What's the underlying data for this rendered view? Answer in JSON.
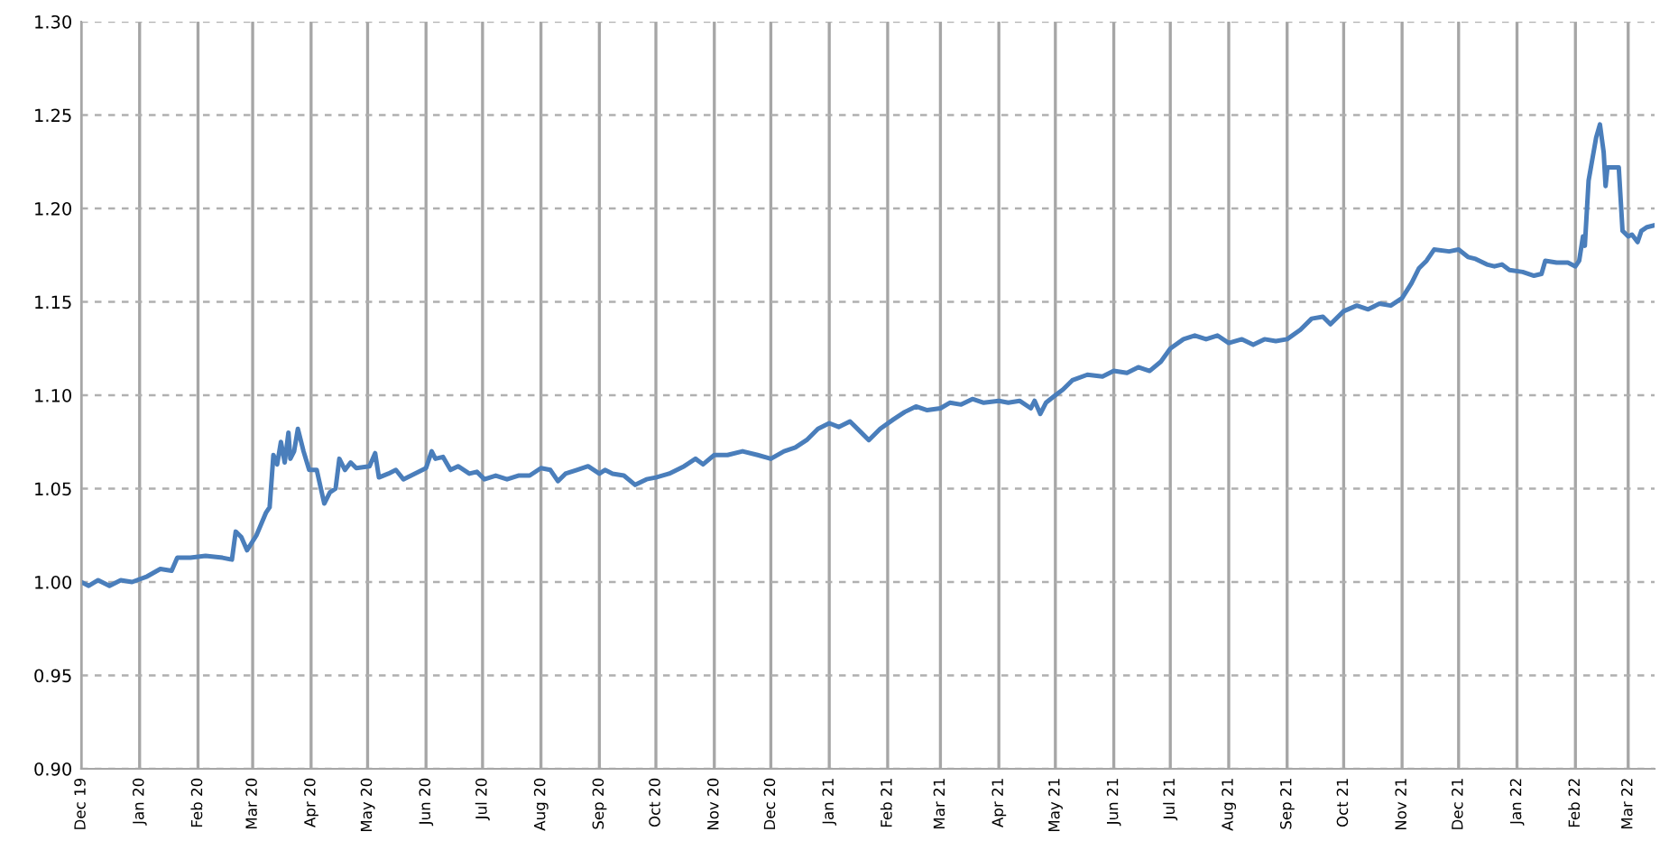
{
  "chart_data": {
    "type": "line",
    "grid": true,
    "xlim": [
      "2019-12-01",
      "2022-03-15"
    ],
    "xticks": [
      {
        "value": "2019-12-01",
        "label": "Dec 19"
      },
      {
        "value": "2020-01-01",
        "label": "Jan 20"
      },
      {
        "value": "2020-02-01",
        "label": "Feb 20"
      },
      {
        "value": "2020-03-01",
        "label": "Mar 20"
      },
      {
        "value": "2020-04-01",
        "label": "Apr 20"
      },
      {
        "value": "2020-05-01",
        "label": "May 20"
      },
      {
        "value": "2020-06-01",
        "label": "Jun 20"
      },
      {
        "value": "2020-07-01",
        "label": "Jul 20"
      },
      {
        "value": "2020-08-01",
        "label": "Aug 20"
      },
      {
        "value": "2020-09-01",
        "label": "Sep 20"
      },
      {
        "value": "2020-10-01",
        "label": "Oct 20"
      },
      {
        "value": "2020-11-01",
        "label": "Nov 20"
      },
      {
        "value": "2020-12-01",
        "label": "Dec 20"
      },
      {
        "value": "2021-01-01",
        "label": "Jan 21"
      },
      {
        "value": "2021-02-01",
        "label": "Feb 21"
      },
      {
        "value": "2021-03-01",
        "label": "Mar 21"
      },
      {
        "value": "2021-04-01",
        "label": "Apr 21"
      },
      {
        "value": "2021-05-01",
        "label": "May 21"
      },
      {
        "value": "2021-06-01",
        "label": "Jun 21"
      },
      {
        "value": "2021-07-01",
        "label": "Jul 21"
      },
      {
        "value": "2021-08-01",
        "label": "Aug 21"
      },
      {
        "value": "2021-09-01",
        "label": "Sep 21"
      },
      {
        "value": "2021-10-01",
        "label": "Oct 21"
      },
      {
        "value": "2021-11-01",
        "label": "Nov 21"
      },
      {
        "value": "2021-12-01",
        "label": "Dec 21"
      },
      {
        "value": "2022-01-01",
        "label": "Jan 22"
      },
      {
        "value": "2022-02-01",
        "label": "Feb 22"
      },
      {
        "value": "2022-03-01",
        "label": "Mar 22"
      }
    ],
    "ylim": [
      0.9,
      1.3
    ],
    "yticks": [
      {
        "value": 0.9,
        "label": "0.90"
      },
      {
        "value": 0.95,
        "label": "0.95"
      },
      {
        "value": 1.0,
        "label": "1.00"
      },
      {
        "value": 1.05,
        "label": "1.05"
      },
      {
        "value": 1.1,
        "label": "1.10"
      },
      {
        "value": 1.15,
        "label": "1.15"
      },
      {
        "value": 1.2,
        "label": "1.20"
      },
      {
        "value": 1.25,
        "label": "1.25"
      },
      {
        "value": 1.3,
        "label": "1.30"
      }
    ],
    "marker": "none",
    "line_style": "solid",
    "series": [
      {
        "color": "#4a7ebb",
        "x": [
          "2019-12-01",
          "2019-12-05",
          "2019-12-10",
          "2019-12-16",
          "2019-12-22",
          "2019-12-28",
          "2020-01-05",
          "2020-01-12",
          "2020-01-18",
          "2020-01-21",
          "2020-01-28",
          "2020-02-05",
          "2020-02-14",
          "2020-02-19",
          "2020-02-21",
          "2020-02-24",
          "2020-02-27",
          "2020-03-03",
          "2020-03-08",
          "2020-03-10",
          "2020-03-12",
          "2020-03-14",
          "2020-03-16",
          "2020-03-18",
          "2020-03-20",
          "2020-03-21",
          "2020-03-23",
          "2020-03-25",
          "2020-03-28",
          "2020-03-31",
          "2020-04-04",
          "2020-04-06",
          "2020-04-08",
          "2020-04-11",
          "2020-04-14",
          "2020-04-16",
          "2020-04-19",
          "2020-04-22",
          "2020-04-25",
          "2020-05-02",
          "2020-05-05",
          "2020-05-07",
          "2020-05-12",
          "2020-05-16",
          "2020-05-20",
          "2020-05-26",
          "2020-06-01",
          "2020-06-04",
          "2020-06-06",
          "2020-06-10",
          "2020-06-14",
          "2020-06-18",
          "2020-06-24",
          "2020-06-28",
          "2020-07-02",
          "2020-07-08",
          "2020-07-14",
          "2020-07-20",
          "2020-07-26",
          "2020-08-01",
          "2020-08-06",
          "2020-08-10",
          "2020-08-14",
          "2020-08-20",
          "2020-08-26",
          "2020-09-01",
          "2020-09-04",
          "2020-09-08",
          "2020-09-14",
          "2020-09-20",
          "2020-09-26",
          "2020-10-01",
          "2020-10-08",
          "2020-10-16",
          "2020-10-22",
          "2020-10-26",
          "2020-11-01",
          "2020-11-08",
          "2020-11-16",
          "2020-11-24",
          "2020-12-01",
          "2020-12-08",
          "2020-12-14",
          "2020-12-20",
          "2020-12-26",
          "2021-01-01",
          "2021-01-06",
          "2021-01-12",
          "2021-01-18",
          "2021-01-22",
          "2021-01-28",
          "2021-02-04",
          "2021-02-10",
          "2021-02-16",
          "2021-02-22",
          "2021-03-01",
          "2021-03-06",
          "2021-03-12",
          "2021-03-18",
          "2021-03-24",
          "2021-04-01",
          "2021-04-06",
          "2021-04-12",
          "2021-04-18",
          "2021-04-20",
          "2021-04-23",
          "2021-04-26",
          "2021-05-01",
          "2021-05-05",
          "2021-05-10",
          "2021-05-18",
          "2021-05-26",
          "2021-06-01",
          "2021-06-08",
          "2021-06-14",
          "2021-06-20",
          "2021-06-26",
          "2021-07-01",
          "2021-07-08",
          "2021-07-14",
          "2021-07-20",
          "2021-07-26",
          "2021-08-01",
          "2021-08-08",
          "2021-08-14",
          "2021-08-20",
          "2021-08-26",
          "2021-09-01",
          "2021-09-08",
          "2021-09-14",
          "2021-09-20",
          "2021-09-24",
          "2021-10-01",
          "2021-10-08",
          "2021-10-14",
          "2021-10-20",
          "2021-10-26",
          "2021-11-01",
          "2021-11-06",
          "2021-11-10",
          "2021-11-14",
          "2021-11-18",
          "2021-11-26",
          "2021-12-01",
          "2021-12-06",
          "2021-12-10",
          "2021-12-16",
          "2021-12-20",
          "2021-12-24",
          "2021-12-28",
          "2022-01-04",
          "2022-01-10",
          "2022-01-14",
          "2022-01-16",
          "2022-01-22",
          "2022-01-28",
          "2022-02-01",
          "2022-02-03",
          "2022-02-05",
          "2022-02-06",
          "2022-02-08",
          "2022-02-12",
          "2022-02-14",
          "2022-02-16",
          "2022-02-17",
          "2022-02-18",
          "2022-02-24",
          "2022-02-26",
          "2022-03-01",
          "2022-03-03",
          "2022-03-06",
          "2022-03-08",
          "2022-03-11",
          "2022-03-15"
        ],
        "values": [
          1.0,
          0.998,
          1.001,
          0.998,
          1.001,
          1.0,
          1.003,
          1.007,
          1.006,
          1.013,
          1.013,
          1.014,
          1.013,
          1.012,
          1.027,
          1.024,
          1.017,
          1.025,
          1.037,
          1.04,
          1.068,
          1.063,
          1.075,
          1.064,
          1.08,
          1.066,
          1.07,
          1.082,
          1.07,
          1.06,
          1.06,
          1.051,
          1.042,
          1.048,
          1.05,
          1.066,
          1.06,
          1.064,
          1.061,
          1.062,
          1.069,
          1.056,
          1.058,
          1.06,
          1.055,
          1.058,
          1.061,
          1.07,
          1.066,
          1.067,
          1.06,
          1.062,
          1.058,
          1.059,
          1.055,
          1.057,
          1.055,
          1.057,
          1.057,
          1.061,
          1.06,
          1.054,
          1.058,
          1.06,
          1.062,
          1.058,
          1.06,
          1.058,
          1.057,
          1.052,
          1.055,
          1.056,
          1.058,
          1.062,
          1.066,
          1.063,
          1.068,
          1.068,
          1.07,
          1.068,
          1.066,
          1.07,
          1.072,
          1.076,
          1.082,
          1.085,
          1.083,
          1.086,
          1.08,
          1.076,
          1.082,
          1.087,
          1.091,
          1.094,
          1.092,
          1.093,
          1.096,
          1.095,
          1.098,
          1.096,
          1.097,
          1.096,
          1.097,
          1.093,
          1.097,
          1.09,
          1.096,
          1.1,
          1.103,
          1.108,
          1.111,
          1.11,
          1.113,
          1.112,
          1.115,
          1.113,
          1.118,
          1.125,
          1.13,
          1.132,
          1.13,
          1.132,
          1.128,
          1.13,
          1.127,
          1.13,
          1.129,
          1.13,
          1.135,
          1.141,
          1.142,
          1.138,
          1.145,
          1.148,
          1.146,
          1.149,
          1.148,
          1.152,
          1.16,
          1.168,
          1.172,
          1.178,
          1.177,
          1.178,
          1.174,
          1.173,
          1.17,
          1.169,
          1.17,
          1.167,
          1.166,
          1.164,
          1.165,
          1.172,
          1.171,
          1.171,
          1.169,
          1.172,
          1.185,
          1.18,
          1.215,
          1.238,
          1.245,
          1.23,
          1.212,
          1.222,
          1.222,
          1.188,
          1.185,
          1.186,
          1.182,
          1.188,
          1.19,
          1.191
        ]
      }
    ]
  }
}
